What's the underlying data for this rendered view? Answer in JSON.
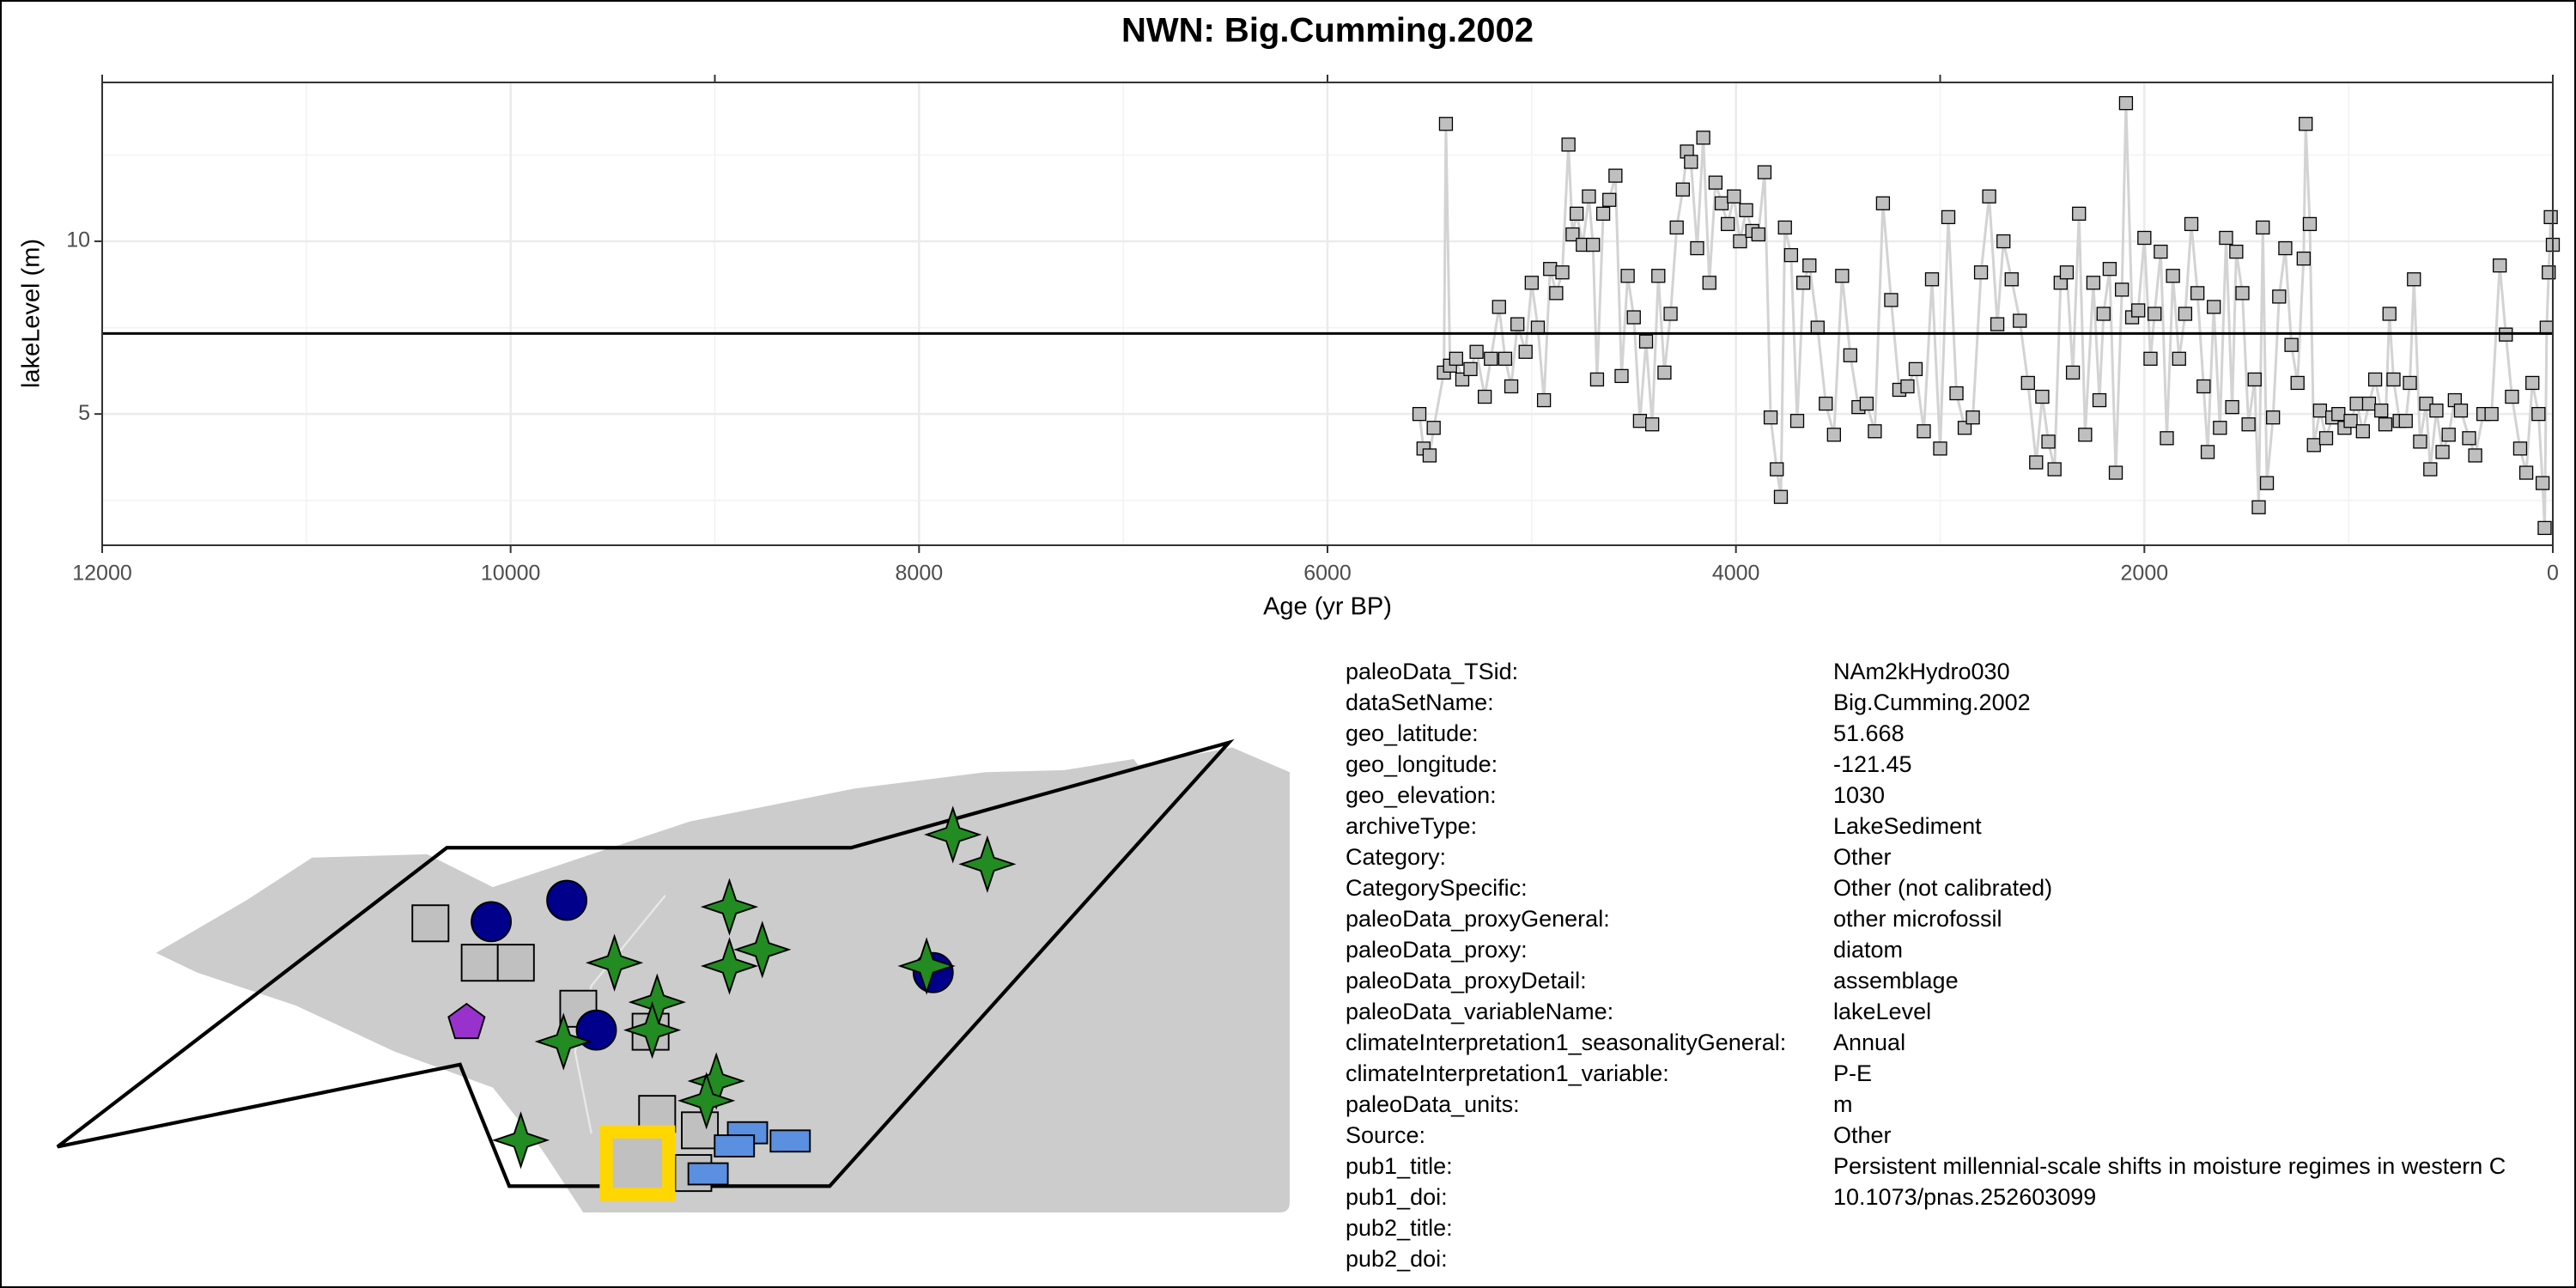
{
  "chart_data": {
    "type": "line-points",
    "title": "NWN: Big.Cumming.2002",
    "xlabel": "Age (yr BP)",
    "ylabel": "lakeLevel (m)",
    "xlim": [
      12000,
      0
    ],
    "ylim": [
      1.2,
      14.6
    ],
    "xticks": [
      12000,
      10000,
      8000,
      6000,
      4000,
      2000,
      0
    ],
    "x2ticks": [
      12000,
      9000,
      6000,
      3000,
      0
    ],
    "minor_xticks": [
      11000,
      9000,
      7000,
      5000,
      3000,
      1000
    ],
    "yticks": [
      5,
      10
    ],
    "minor_yticks": [
      2.5,
      7.5,
      12.5
    ],
    "grid": true,
    "hline": 7.33,
    "color": "#bfbfbf",
    "line_color": "#d3d3d3",
    "x": [
      5550,
      5530,
      5500,
      5480,
      5430,
      5420,
      5400,
      5370,
      5340,
      5300,
      5270,
      5230,
      5200,
      5160,
      5130,
      5100,
      5070,
      5030,
      5000,
      4970,
      4940,
      4910,
      4880,
      4850,
      4820,
      4800,
      4780,
      4750,
      4720,
      4700,
      4680,
      4650,
      4620,
      4590,
      4560,
      4530,
      4500,
      4470,
      4440,
      4410,
      4380,
      4350,
      4320,
      4290,
      4260,
      4240,
      4220,
      4190,
      4160,
      4130,
      4100,
      4070,
      4040,
      4010,
      3980,
      3950,
      3920,
      3890,
      3860,
      3830,
      3800,
      3780,
      3760,
      3730,
      3700,
      3670,
      3640,
      3600,
      3560,
      3520,
      3480,
      3440,
      3400,
      3360,
      3320,
      3280,
      3240,
      3200,
      3160,
      3120,
      3080,
      3040,
      3000,
      2960,
      2920,
      2880,
      2840,
      2800,
      2760,
      2720,
      2690,
      2650,
      2610,
      2570,
      2530,
      2500,
      2470,
      2440,
      2410,
      2380,
      2350,
      2320,
      2290,
      2250,
      2220,
      2200,
      2170,
      2140,
      2110,
      2090,
      2060,
      2030,
      2000,
      1970,
      1950,
      1920,
      1890,
      1860,
      1830,
      1800,
      1770,
      1740,
      1710,
      1690,
      1660,
      1630,
      1600,
      1570,
      1550,
      1520,
      1490,
      1460,
      1440,
      1420,
      1400,
      1370,
      1340,
      1310,
      1280,
      1250,
      1220,
      1210,
      1190,
      1170,
      1140,
      1110,
      1080,
      1050,
      1020,
      990,
      960,
      930,
      900,
      870,
      840,
      820,
      800,
      780,
      750,
      720,
      700,
      680,
      650,
      620,
      600,
      570,
      540,
      510,
      480,
      450,
      410,
      380,
      340,
      300,
      260,
      230,
      200,
      160,
      130,
      100,
      70,
      50,
      40,
      30,
      20,
      10,
      0
    ],
    "values": [
      5.0,
      4.0,
      3.8,
      4.6,
      6.2,
      13.4,
      6.4,
      6.6,
      6.0,
      6.3,
      6.8,
      5.5,
      6.6,
      8.1,
      6.6,
      5.8,
      7.6,
      6.8,
      8.8,
      7.5,
      5.4,
      9.2,
      8.5,
      9.1,
      12.8,
      10.2,
      10.8,
      9.9,
      11.3,
      9.9,
      6.0,
      10.8,
      11.2,
      11.9,
      6.1,
      9.0,
      7.8,
      4.8,
      7.1,
      4.7,
      9.0,
      6.2,
      7.9,
      10.4,
      11.5,
      12.6,
      12.3,
      9.8,
      13.0,
      8.8,
      11.7,
      11.1,
      10.5,
      11.3,
      10.0,
      10.9,
      10.3,
      10.2,
      12.0,
      4.9,
      3.4,
      2.6,
      10.4,
      9.6,
      4.8,
      8.8,
      9.3,
      7.5,
      5.3,
      4.4,
      9.0,
      6.7,
      5.2,
      5.3,
      4.5,
      11.1,
      8.3,
      5.7,
      5.8,
      6.3,
      4.5,
      8.9,
      4.0,
      10.7,
      5.6,
      4.6,
      4.9,
      9.1,
      11.3,
      7.6,
      10.0,
      8.9,
      7.7,
      5.9,
      3.6,
      5.5,
      4.2,
      3.4,
      8.8,
      9.1,
      6.2,
      10.8,
      4.4,
      8.8,
      5.4,
      7.9,
      9.2,
      3.3,
      8.6,
      14.0,
      7.8,
      8.0,
      10.1,
      6.6,
      7.9,
      9.7,
      4.3,
      9.0,
      6.6,
      7.9,
      10.5,
      8.5,
      5.8,
      3.9,
      8.1,
      4.6,
      10.1,
      5.2,
      9.7,
      8.5,
      4.7,
      6.0,
      2.3,
      10.4,
      3.0,
      4.9,
      8.4,
      9.8,
      7.0,
      5.9,
      9.5,
      13.4,
      10.5,
      4.1,
      5.1,
      4.3,
      4.9,
      5.0,
      4.6,
      4.8,
      5.3,
      4.5,
      5.3,
      6.0,
      5.1,
      4.7,
      7.9,
      6.0,
      4.8,
      4.8,
      5.9,
      8.9,
      4.2,
      5.3,
      3.4,
      5.1,
      3.9,
      4.4,
      5.4,
      5.1,
      4.3,
      3.8,
      5.0,
      5.0,
      9.3,
      7.3,
      5.5,
      4.0,
      3.3,
      5.9,
      5.0,
      3.0,
      1.7,
      7.5,
      9.1,
      10.7,
      9.9
    ]
  },
  "metadata": {
    "rows": [
      {
        "key": "paleoData_TSid:",
        "value": "NAm2kHydro030"
      },
      {
        "key": "dataSetName:",
        "value": "Big.Cumming.2002"
      },
      {
        "key": "geo_latitude:",
        "value": "51.668"
      },
      {
        "key": "geo_longitude:",
        "value": "-121.45"
      },
      {
        "key": "geo_elevation:",
        "value": "1030"
      },
      {
        "key": "archiveType:",
        "value": "LakeSediment"
      },
      {
        "key": "Category:",
        "value": "Other"
      },
      {
        "key": "CategorySpecific:",
        "value": "Other (not calibrated)"
      },
      {
        "key": "paleoData_proxyGeneral:",
        "value": "other microfossil"
      },
      {
        "key": "paleoData_proxy:",
        "value": "diatom"
      },
      {
        "key": "paleoData_proxyDetail:",
        "value": "assemblage"
      },
      {
        "key": "paleoData_variableName:",
        "value": "lakeLevel"
      },
      {
        "key": "climateInterpretation1_seasonalityGeneral:",
        "value": "Annual"
      },
      {
        "key": "climateInterpretation1_variable:",
        "value": "P-E"
      },
      {
        "key": "paleoData_units:",
        "value": "m"
      },
      {
        "key": "Source:",
        "value": "Other"
      },
      {
        "key": "pub1_title:",
        "value": "Persistent millennial-scale shifts in moisture regimes in western C"
      },
      {
        "key": "pub1_doi:",
        "value": "10.1073/pnas.252603099"
      },
      {
        "key": "pub2_title:"
      },
      {
        "key": "pub2_doi:"
      }
    ]
  }
}
